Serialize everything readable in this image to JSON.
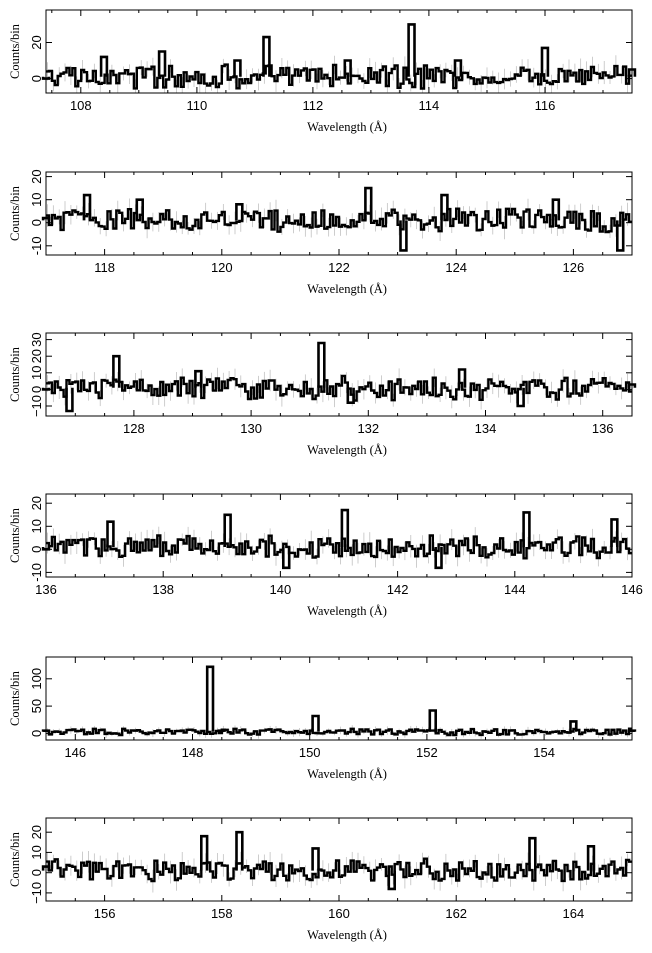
{
  "chart_data": [
    {
      "type": "line",
      "xlabel": "Wavelength (Å)",
      "ylabel": "Counts/bin",
      "xlim": [
        107.4,
        117.5
      ],
      "ylim": [
        -8,
        38
      ],
      "xticks": [
        108,
        110,
        112,
        114,
        116
      ],
      "yticks": [
        0,
        20
      ],
      "ytick_labels": [
        "0",
        "20"
      ],
      "series": [
        {
          "x": [
            107.4,
            108.4,
            109.4,
            110.7,
            111.2,
            112.6,
            113.7,
            114.5,
            116.0,
            117.5
          ],
          "y": [
            0,
            12,
            15,
            10,
            23,
            10,
            30,
            10,
            17,
            5
          ]
        }
      ]
    },
    {
      "type": "line",
      "xlabel": "Wavelength (Å)",
      "ylabel": "Counts/bin",
      "xlim": [
        117.0,
        127.0
      ],
      "ylim": [
        -14,
        22
      ],
      "xticks": [
        118,
        120,
        122,
        124,
        126
      ],
      "yticks": [
        -10,
        0,
        10,
        20
      ],
      "ytick_labels": [
        "-10",
        "0",
        "10",
        "20"
      ],
      "series": [
        {
          "x": [
            117.0,
            117.7,
            118.6,
            120.3,
            122.5,
            123.1,
            123.8,
            125.7,
            126.8
          ],
          "y": [
            2,
            12,
            10,
            8,
            15,
            -12,
            12,
            10,
            -12
          ]
        }
      ]
    },
    {
      "type": "line",
      "xlabel": "Wavelength (Å)",
      "ylabel": "Counts/bin",
      "xlim": [
        126.5,
        136.5
      ],
      "ylim": [
        -16,
        34
      ],
      "xticks": [
        128,
        130,
        132,
        134,
        136
      ],
      "yticks": [
        -10,
        0,
        10,
        20,
        30
      ],
      "ytick_labels": [
        "−10",
        "0",
        "10",
        "20",
        "30"
      ],
      "series": [
        {
          "x": [
            126.5,
            126.9,
            127.7,
            129.1,
            131.2,
            131.7,
            133.6,
            134.6,
            136.5
          ],
          "y": [
            0,
            -13,
            20,
            11,
            28,
            -8,
            12,
            -10,
            3
          ]
        }
      ]
    },
    {
      "type": "line",
      "xlabel": "Wavelength (Å)",
      "ylabel": "Counts/bin",
      "xlim": [
        136.0,
        146.0
      ],
      "ylim": [
        -12,
        24
      ],
      "xticks": [
        136,
        138,
        140,
        142,
        144,
        146
      ],
      "yticks": [
        -10,
        0,
        10,
        20
      ],
      "ytick_labels": [
        "-10",
        "0",
        "10",
        "20"
      ],
      "series": [
        {
          "x": [
            136.0,
            137.1,
            139.1,
            140.1,
            141.1,
            142.7,
            144.2,
            145.7
          ],
          "y": [
            0,
            12,
            15,
            -8,
            17,
            -8,
            16,
            13
          ]
        }
      ]
    },
    {
      "type": "line",
      "xlabel": "Wavelength (Å)",
      "ylabel": "Counts/bin",
      "xlim": [
        145.5,
        155.5
      ],
      "ylim": [
        -12,
        140
      ],
      "xticks": [
        146,
        148,
        150,
        152,
        154
      ],
      "yticks": [
        0,
        50,
        100
      ],
      "ytick_labels": [
        "0",
        "50",
        "100"
      ],
      "series": [
        {
          "x": [
            145.5,
            148.3,
            148.5,
            150.1,
            152.1,
            154.5,
            155.5
          ],
          "y": [
            5,
            122,
            5,
            32,
            42,
            22,
            5
          ]
        }
      ]
    },
    {
      "type": "line",
      "xlabel": "Wavelength (Å)",
      "ylabel": "Counts/bin",
      "xlim": [
        155.0,
        165.0
      ],
      "ylim": [
        -14,
        27
      ],
      "xticks": [
        156,
        158,
        160,
        162,
        164
      ],
      "yticks": [
        -10,
        0,
        10,
        20
      ],
      "ytick_labels": [
        "−10",
        "0",
        "10",
        "20"
      ],
      "series": [
        {
          "x": [
            155.0,
            157.7,
            158.3,
            159.6,
            160.9,
            163.3,
            164.3
          ],
          "y": [
            3,
            18,
            20,
            12,
            -8,
            17,
            13
          ]
        }
      ]
    }
  ]
}
